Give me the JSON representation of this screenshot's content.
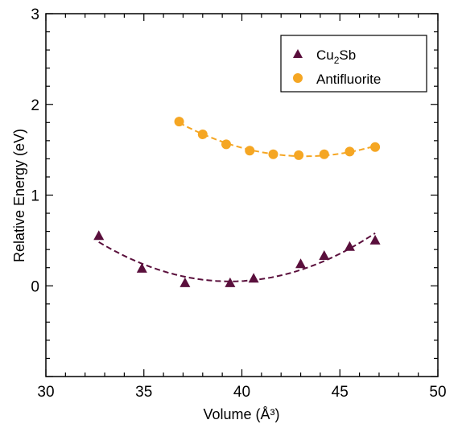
{
  "chart_data": {
    "type": "scatter",
    "xlabel": "Volume (Å³)",
    "ylabel": "Relative Energy (eV)",
    "xlim": [
      30,
      50
    ],
    "ylim": [
      -1,
      3
    ],
    "xticks": [
      30,
      35,
      40,
      45,
      50
    ],
    "yticks": [
      0,
      1,
      2,
      3
    ],
    "grid": false,
    "legend_position": "top-right",
    "series": [
      {
        "name": "Cu2Sb",
        "name_main": "Cu",
        "name_sub": "2",
        "name_end": "Sb",
        "marker": "triangle",
        "color": "#5a0f3c",
        "line_style": "dashed",
        "x": [
          32.7,
          34.9,
          37.1,
          39.4,
          40.6,
          43.0,
          44.2,
          45.5,
          46.8
        ],
        "y": [
          0.55,
          0.19,
          0.03,
          0.03,
          0.08,
          0.24,
          0.33,
          0.43,
          0.5
        ],
        "fit_curve": [
          0.00075,
          -0.0095,
          0.052
        ]
      },
      {
        "name": "Antifluorite",
        "marker": "circle",
        "color": "#f5a623",
        "line_style": "dashed",
        "x": [
          36.8,
          38.0,
          39.2,
          40.4,
          41.6,
          42.9,
          44.2,
          45.5,
          46.8
        ],
        "y": [
          1.81,
          1.67,
          1.56,
          1.49,
          1.45,
          1.44,
          1.45,
          1.48,
          1.53
        ],
        "fit_curve": [
          0.00045,
          -0.0093,
          1.44
        ]
      }
    ]
  }
}
